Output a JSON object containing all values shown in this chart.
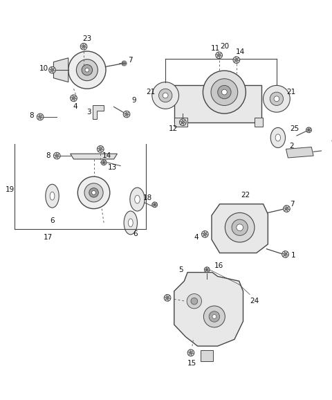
{
  "bg_color": "#ffffff",
  "lc": "#444444",
  "lc2": "#666666",
  "fs": 7.5,
  "figsize": [
    4.8,
    5.78
  ],
  "dpi": 100
}
